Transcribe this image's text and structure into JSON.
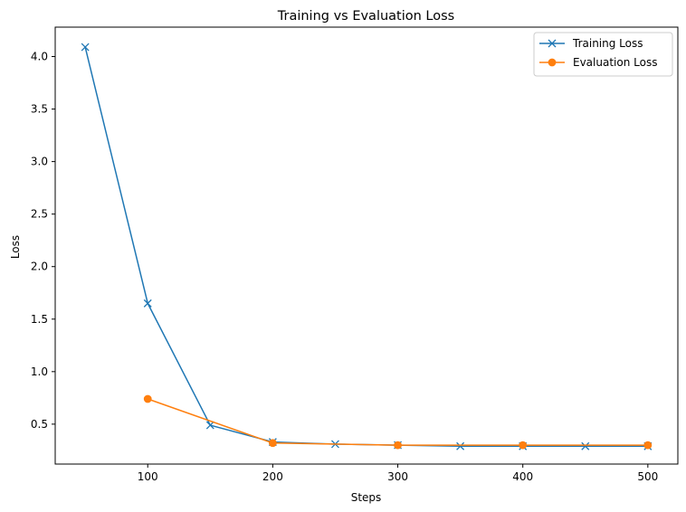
{
  "chart_data": {
    "type": "line",
    "title": "Training vs Evaluation Loss",
    "xlabel": "Steps",
    "ylabel": "Loss",
    "xlim": [
      26,
      524
    ],
    "ylim": [
      0.12,
      4.28
    ],
    "xticks": [
      100,
      200,
      300,
      400,
      500
    ],
    "yticks": [
      0.5,
      1.0,
      1.5,
      2.0,
      2.5,
      3.0,
      3.5,
      4.0
    ],
    "grid": false,
    "legend_position": "top-right",
    "series": [
      {
        "name": "Training Loss",
        "color": "#1f77b4",
        "marker": "x",
        "x": [
          50,
          100,
          150,
          200,
          250,
          300,
          350,
          400,
          450,
          500
        ],
        "y": [
          4.09,
          1.65,
          0.49,
          0.33,
          0.31,
          0.3,
          0.29,
          0.29,
          0.29,
          0.29
        ]
      },
      {
        "name": "Evaluation Loss",
        "color": "#ff7f0e",
        "marker": "o",
        "x": [
          100,
          200,
          300,
          400,
          500
        ],
        "y": [
          0.74,
          0.32,
          0.3,
          0.3,
          0.3
        ]
      }
    ]
  }
}
